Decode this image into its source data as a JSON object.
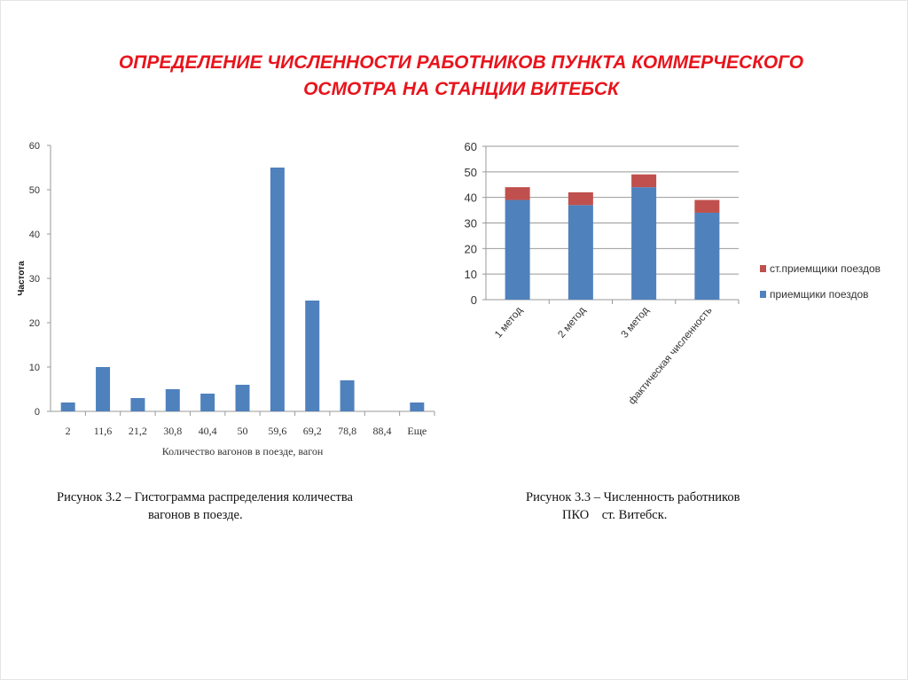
{
  "slide": {
    "title_line1": "ОПРЕДЕЛЕНИЕ ЧИСЛЕННОСТИ РАБОТНИКОВ ПУНКТА КОММЕРЧЕСКОГО",
    "title_line2": "ОСМОТРА НА СТАНЦИИ ВИТЕБСК",
    "title_color": "#e8141c",
    "caption_left_line1": "Рисунок 3.2 – Гистограмма распределения количества",
    "caption_left_line2": "вагонов в поезде.",
    "caption_right_line1": "Рисунок 3.3 – Численность работников",
    "caption_right_line2": "ПКО    ст. Витебск."
  },
  "chart_data": [
    {
      "type": "bar",
      "title": "",
      "xlabel": "Количество вагонов в поезде, вагон",
      "ylabel": "Частота",
      "categories": [
        "2",
        "11,6",
        "21,2",
        "30,8",
        "40,4",
        "50",
        "59,6",
        "69,2",
        "78,8",
        "88,4",
        "Еще"
      ],
      "values": [
        2,
        10,
        3,
        5,
        4,
        6,
        55,
        25,
        7,
        0,
        2
      ],
      "ylim": [
        0,
        60
      ],
      "yticks": [
        0,
        10,
        20,
        30,
        40,
        50,
        60
      ],
      "grid": false,
      "color": "#4f81bd"
    },
    {
      "type": "bar",
      "stacked": true,
      "title": "",
      "categories": [
        "1 метод",
        "2 метод",
        "3 метод",
        "фактическая численность"
      ],
      "series": [
        {
          "name": "приемщики поездов",
          "values": [
            39,
            37,
            44,
            34
          ],
          "color": "#4f81bd"
        },
        {
          "name": "ст.приемщики поездов",
          "values": [
            5,
            5,
            5,
            5
          ],
          "color": "#c0504d"
        }
      ],
      "ylim": [
        0,
        60
      ],
      "yticks": [
        0,
        10,
        20,
        30,
        40,
        50,
        60
      ],
      "grid": true,
      "legend": "right"
    }
  ]
}
